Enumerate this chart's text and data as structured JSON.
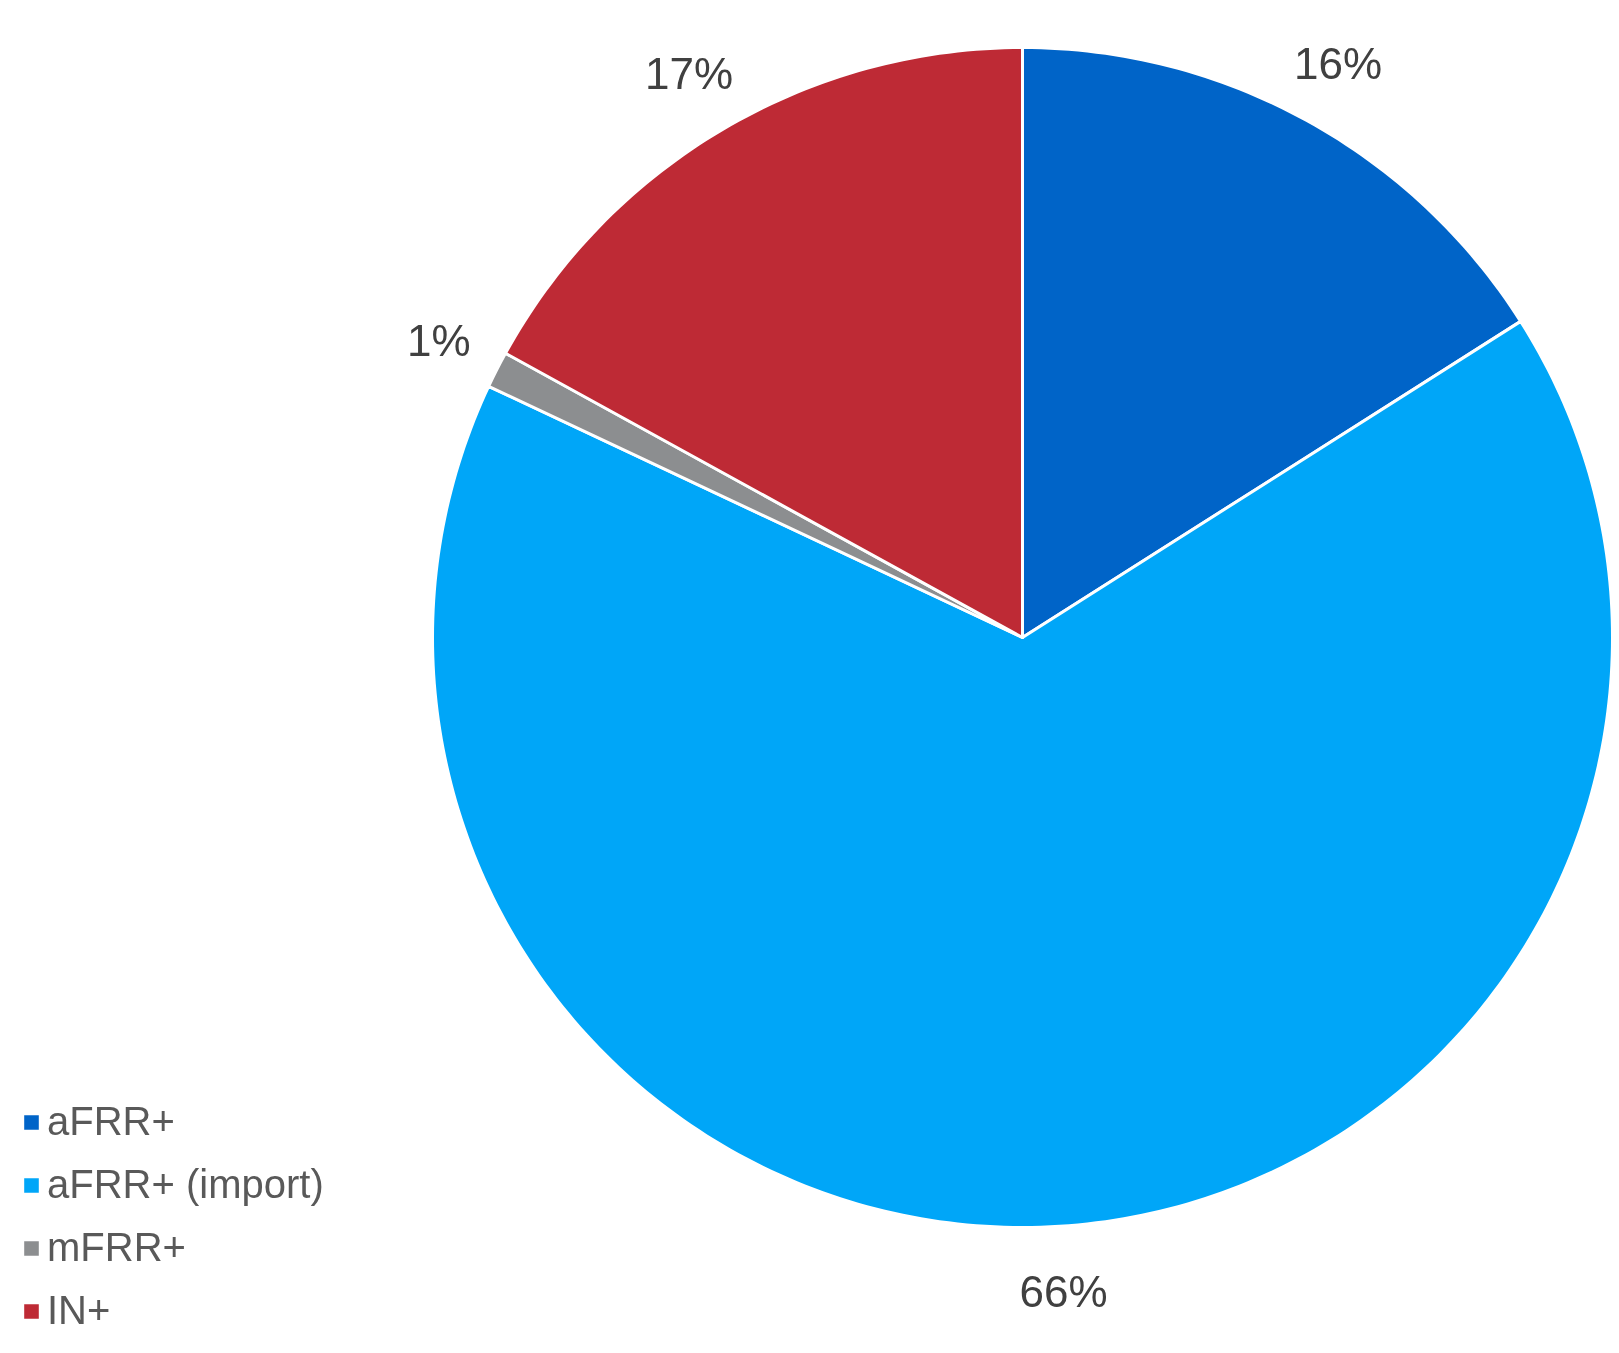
{
  "chart_data": {
    "type": "pie",
    "categories": [
      "aFRR+",
      "aFRR+ (import)",
      "mFRR+",
      "IN+"
    ],
    "values": [
      16,
      66,
      1,
      17
    ],
    "value_labels": [
      "16%",
      "66%",
      "1%",
      "17%"
    ],
    "colors": [
      "#0064c8",
      "#00a6f8",
      "#8c8e90",
      "#be2a35"
    ],
    "legend": "bottom left"
  }
}
